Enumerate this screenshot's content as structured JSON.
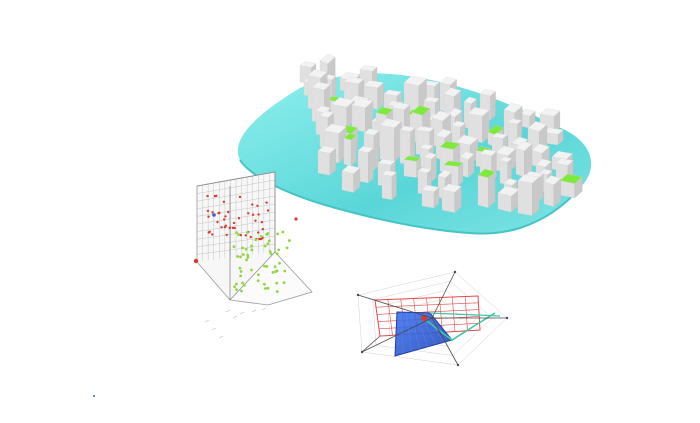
{
  "colors": {
    "background": "#ffffff",
    "terrain_base": "#5ad6d8",
    "terrain_highlight": "#8ff0ee",
    "building_top": "#f2f2f2",
    "building_side": "#c9c9c9",
    "building_front": "#e0e0e0",
    "green_roof": "#7dea3c",
    "scatter_red": "#d93a2b",
    "scatter_green": "#8fd641",
    "scatter_blue": "#3a5fd9",
    "grid_gray": "#b8b8b8",
    "radar_red": "#e24a4a",
    "radar_blue": "#2f63e3",
    "radar_teal": "#3cc6a8"
  },
  "icons": {
    "city_model": "city-block-3d-icon",
    "scatter_3d": "scatter-3d-plot",
    "radar": "radar-chart"
  }
}
